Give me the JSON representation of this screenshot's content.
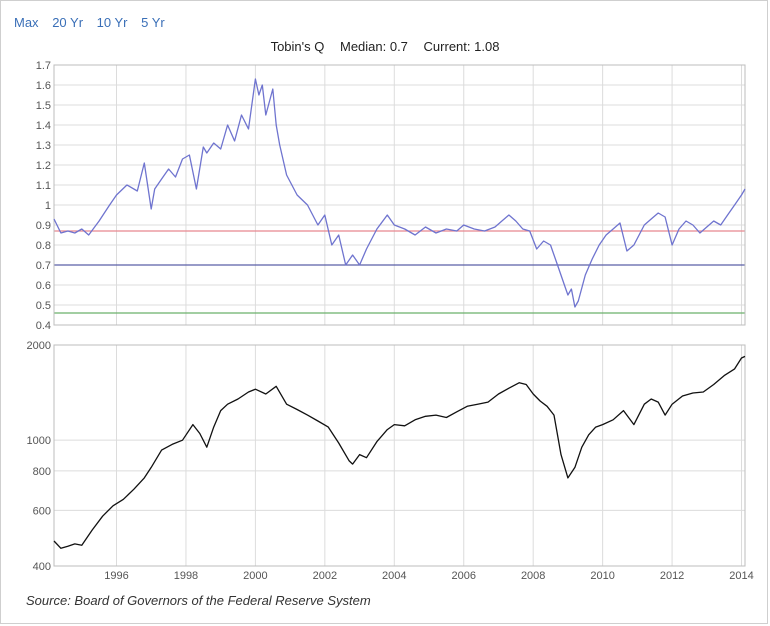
{
  "range_links": [
    "Max",
    "20 Yr",
    "10 Yr",
    "5 Yr"
  ],
  "title": {
    "name": "Tobin's Q",
    "median_label": "Median: 0.7",
    "current_label": "Current: 1.08"
  },
  "source": "Source: Board of Governors of the Federal Reserve System",
  "chart_data": [
    {
      "type": "line",
      "title": "Tobin's Q",
      "ylim": [
        0.4,
        1.7
      ],
      "xlim": [
        1994.2,
        2014.1
      ],
      "yticks": [
        0.4,
        0.5,
        0.6,
        0.7,
        0.8,
        0.9,
        1,
        1.1,
        1.2,
        1.3,
        1.4,
        1.5,
        1.6,
        1.7
      ],
      "grid": true,
      "series": [
        {
          "color": "#6f74cf",
          "x": [
            1994.2,
            1994.4,
            1994.6,
            1994.8,
            1995.0,
            1995.2,
            1995.5,
            1995.8,
            1996.0,
            1996.3,
            1996.6,
            1996.8,
            1997.0,
            1997.1,
            1997.3,
            1997.5,
            1997.7,
            1997.9,
            1998.1,
            1998.3,
            1998.5,
            1998.6,
            1998.8,
            1999.0,
            1999.2,
            1999.4,
            1999.6,
            1999.8,
            2000.0,
            2000.1,
            2000.2,
            2000.3,
            2000.5,
            2000.6,
            2000.7,
            2000.9,
            2001.2,
            2001.5,
            2001.8,
            2002.0,
            2002.2,
            2002.4,
            2002.6,
            2002.8,
            2003.0,
            2003.2,
            2003.5,
            2003.8,
            2004.0,
            2004.3,
            2004.6,
            2004.9,
            2005.2,
            2005.5,
            2005.8,
            2006.0,
            2006.3,
            2006.6,
            2006.9,
            2007.1,
            2007.3,
            2007.5,
            2007.7,
            2007.9,
            2008.1,
            2008.3,
            2008.5,
            2008.7,
            2008.9,
            2009.0,
            2009.1,
            2009.2,
            2009.3,
            2009.5,
            2009.7,
            2009.9,
            2010.1,
            2010.3,
            2010.5,
            2010.7,
            2010.9,
            2011.2,
            2011.4,
            2011.6,
            2011.8,
            2012.0,
            2012.2,
            2012.4,
            2012.6,
            2012.8,
            2013.0,
            2013.2,
            2013.4,
            2013.6,
            2013.8,
            2014.0,
            2014.1
          ],
          "y": [
            0.93,
            0.86,
            0.87,
            0.86,
            0.88,
            0.85,
            0.92,
            1.0,
            1.05,
            1.1,
            1.07,
            1.21,
            0.98,
            1.08,
            1.13,
            1.18,
            1.14,
            1.23,
            1.25,
            1.08,
            1.29,
            1.26,
            1.31,
            1.28,
            1.4,
            1.32,
            1.45,
            1.38,
            1.63,
            1.55,
            1.6,
            1.45,
            1.58,
            1.4,
            1.3,
            1.15,
            1.05,
            1.0,
            0.9,
            0.95,
            0.8,
            0.85,
            0.7,
            0.75,
            0.7,
            0.78,
            0.88,
            0.95,
            0.9,
            0.88,
            0.85,
            0.89,
            0.86,
            0.88,
            0.87,
            0.9,
            0.88,
            0.87,
            0.89,
            0.92,
            0.95,
            0.92,
            0.88,
            0.87,
            0.78,
            0.82,
            0.8,
            0.7,
            0.6,
            0.55,
            0.58,
            0.49,
            0.52,
            0.65,
            0.73,
            0.8,
            0.85,
            0.88,
            0.91,
            0.77,
            0.8,
            0.9,
            0.93,
            0.96,
            0.94,
            0.8,
            0.88,
            0.92,
            0.9,
            0.86,
            0.89,
            0.92,
            0.9,
            0.95,
            1.0,
            1.05,
            1.08
          ]
        }
      ],
      "reference_lines": [
        {
          "y": 0.87,
          "color": "#e8878f"
        },
        {
          "y": 0.7,
          "color": "#5a5fa8"
        },
        {
          "y": 0.46,
          "color": "#6bb06b"
        }
      ]
    },
    {
      "type": "line",
      "scale": "log",
      "ylim": [
        400,
        2000
      ],
      "xlim": [
        1994.2,
        2014.1
      ],
      "yticks": [
        400,
        600,
        800,
        1000,
        2000
      ],
      "xticks": [
        1996,
        1998,
        2000,
        2002,
        2004,
        2006,
        2008,
        2010,
        2012,
        2014
      ],
      "grid": true,
      "series": [
        {
          "color": "#111111",
          "x": [
            1994.2,
            1994.4,
            1994.6,
            1994.8,
            1995.0,
            1995.3,
            1995.6,
            1995.9,
            1996.2,
            1996.5,
            1996.8,
            1997.0,
            1997.3,
            1997.6,
            1997.9,
            1998.2,
            1998.4,
            1998.6,
            1998.8,
            1999.0,
            1999.2,
            1999.5,
            1999.8,
            2000.0,
            2000.3,
            2000.6,
            2000.9,
            2001.2,
            2001.5,
            2001.8,
            2002.1,
            2002.4,
            2002.7,
            2002.8,
            2003.0,
            2003.2,
            2003.5,
            2003.8,
            2004.0,
            2004.3,
            2004.6,
            2004.9,
            2005.2,
            2005.5,
            2005.8,
            2006.1,
            2006.4,
            2006.7,
            2007.0,
            2007.3,
            2007.6,
            2007.8,
            2008.0,
            2008.2,
            2008.4,
            2008.6,
            2008.8,
            2009.0,
            2009.2,
            2009.4,
            2009.6,
            2009.8,
            2010.0,
            2010.3,
            2010.6,
            2010.9,
            2011.2,
            2011.4,
            2011.6,
            2011.8,
            2012.0,
            2012.3,
            2012.6,
            2012.9,
            2013.2,
            2013.5,
            2013.8,
            2014.0,
            2014.1
          ],
          "y": [
            480,
            455,
            462,
            470,
            465,
            520,
            575,
            620,
            650,
            700,
            760,
            820,
            930,
            970,
            1000,
            1120,
            1050,
            950,
            1100,
            1240,
            1300,
            1350,
            1420,
            1450,
            1400,
            1480,
            1300,
            1250,
            1200,
            1150,
            1100,
            980,
            860,
            840,
            900,
            880,
            990,
            1080,
            1120,
            1110,
            1160,
            1190,
            1200,
            1180,
            1230,
            1280,
            1300,
            1320,
            1400,
            1460,
            1520,
            1500,
            1400,
            1330,
            1280,
            1200,
            900,
            760,
            820,
            950,
            1040,
            1100,
            1120,
            1160,
            1240,
            1120,
            1300,
            1350,
            1320,
            1200,
            1300,
            1380,
            1410,
            1420,
            1500,
            1600,
            1680,
            1820,
            1840
          ]
        }
      ]
    }
  ]
}
